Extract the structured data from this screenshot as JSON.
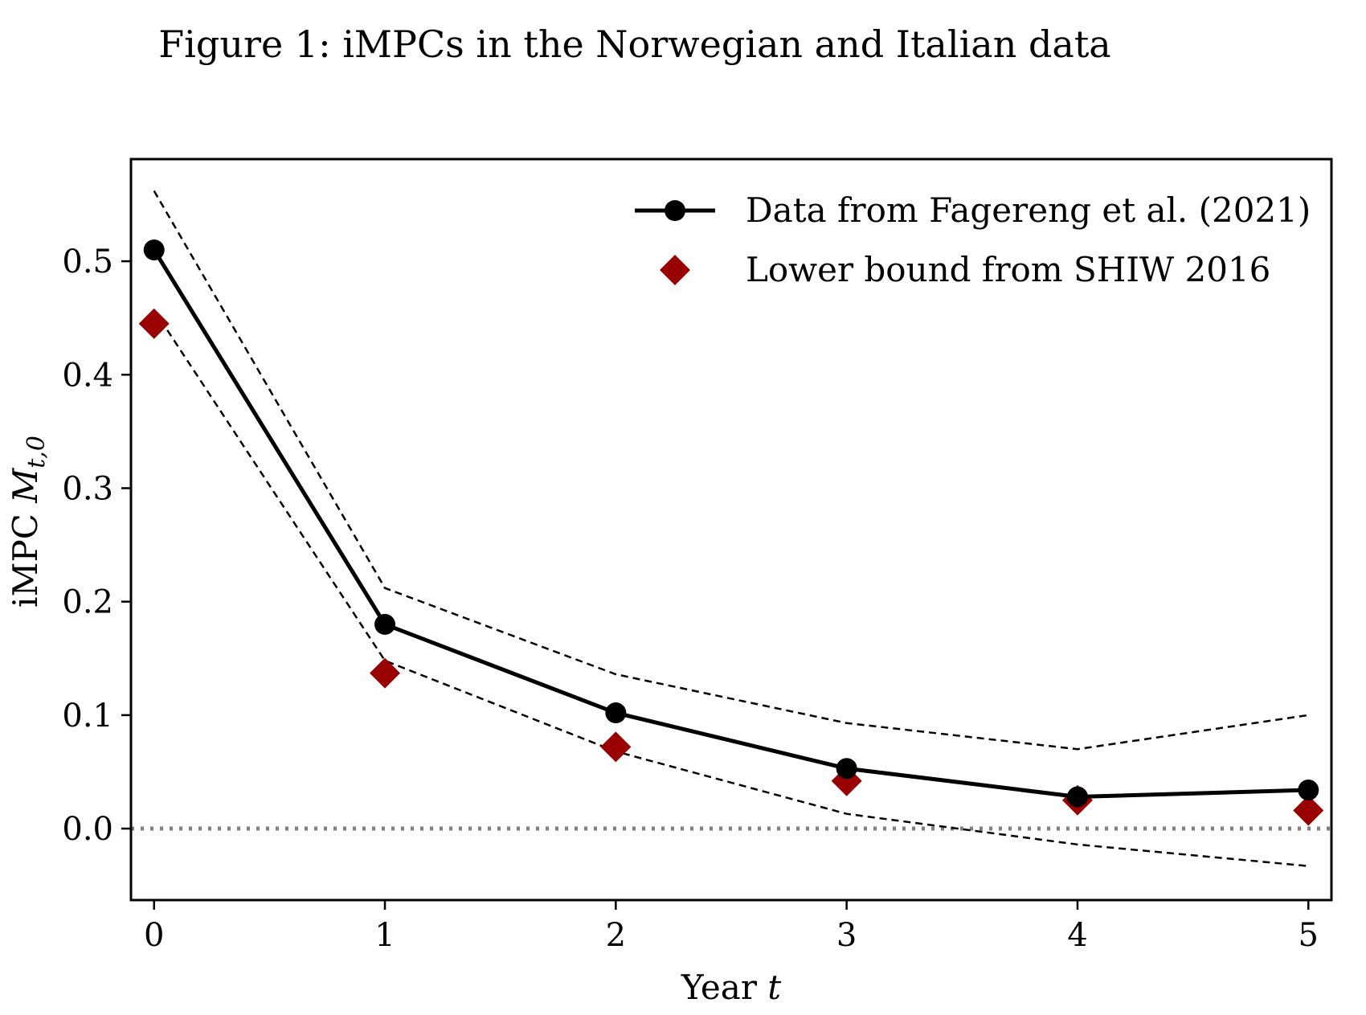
{
  "figure_title": "Figure 1: iMPCs in the Norwegian and Italian data",
  "chart_data": {
    "type": "line",
    "title": "",
    "xlabel": "Year t",
    "ylabel": "iMPC M_{t,0}",
    "xlim": [
      -0.1,
      5.1
    ],
    "ylim": [
      -0.063,
      0.59
    ],
    "x_ticks": [
      0,
      1,
      2,
      3,
      4,
      5
    ],
    "y_ticks": [
      0.0,
      0.1,
      0.2,
      0.3,
      0.4,
      0.5
    ],
    "y_tick_labels": [
      "0.0",
      "0.1",
      "0.2",
      "0.3",
      "0.4",
      "0.5"
    ],
    "x": [
      0,
      1,
      2,
      3,
      4,
      5
    ],
    "series": [
      {
        "name": "Data from Fagereng et al. (2021)",
        "style": "solid-line-circle-markers",
        "color": "#000000",
        "values": [
          0.51,
          0.18,
          0.102,
          0.053,
          0.028,
          0.034
        ]
      },
      {
        "name": "Lower bound from SHIW 2016",
        "style": "diamond-markers",
        "color": "#990000",
        "values": [
          0.445,
          0.137,
          0.072,
          0.042,
          0.025,
          0.016
        ]
      },
      {
        "style": "dashed-upper-band",
        "color": "#000000",
        "values": [
          0.562,
          0.212,
          0.136,
          0.093,
          0.07,
          0.1
        ]
      },
      {
        "style": "dashed-lower-band",
        "color": "#000000",
        "values": [
          0.457,
          0.148,
          0.068,
          0.013,
          -0.014,
          -0.033
        ]
      }
    ],
    "reference_line": {
      "y": 0.0,
      "style": "dotted",
      "color": "#808080"
    },
    "legend_position": "top-right",
    "grid": false
  }
}
